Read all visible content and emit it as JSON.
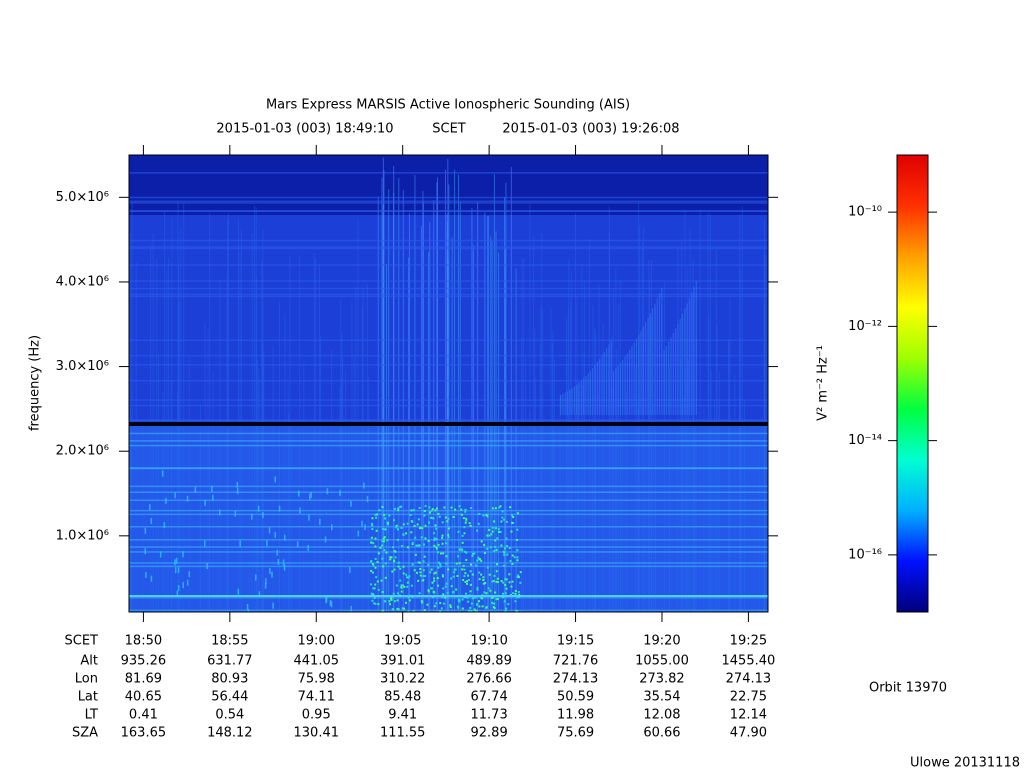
{
  "chart_data": {
    "type": "spectrogram",
    "title": "Mars Express MARSIS Active Ionospheric Sounding (AIS)",
    "time_start": "2015-01-03 (003) 18:49:10",
    "time_system": "SCET",
    "time_end": "2015-01-03 (003) 19:26:08",
    "ylabel": "frequency (Hz)",
    "ylim": [
      100000,
      5500000
    ],
    "yticks": [
      {
        "value": 1000000,
        "label": "1.0×10⁶"
      },
      {
        "value": 2000000,
        "label": "2.0×10⁶"
      },
      {
        "value": 3000000,
        "label": "3.0×10⁶"
      },
      {
        "value": 4000000,
        "label": "4.0×10⁶"
      },
      {
        "value": 5000000,
        "label": "5.0×10⁶"
      }
    ],
    "xlim": [
      "18:49:10",
      "19:26:08"
    ],
    "xticks": [
      "18:50",
      "18:55",
      "19:00",
      "19:05",
      "19:10",
      "19:15",
      "19:20",
      "19:25"
    ],
    "colorbar": {
      "label": "V² m⁻² Hz⁻¹",
      "log": true,
      "lim": [
        1e-17,
        1e-09
      ],
      "ticks": [
        {
          "value": 1e-10,
          "label": "10⁻¹⁰"
        },
        {
          "value": 1e-12,
          "label": "10⁻¹²"
        },
        {
          "value": 1e-14,
          "label": "10⁻¹⁴"
        },
        {
          "value": 1e-16,
          "label": "10⁻¹⁶"
        }
      ],
      "colors": [
        "#00007a",
        "#0010ff",
        "#00b0ff",
        "#00ffd0",
        "#00ff40",
        "#a0ff00",
        "#ffff00",
        "#ffa000",
        "#ff3000",
        "#e00000"
      ]
    }
  },
  "ephemeris": {
    "header": "SCET",
    "rows": [
      {
        "name": "Alt",
        "values": [
          "935.26",
          "631.77",
          "441.05",
          "391.01",
          "489.89",
          "721.76",
          "1055.00",
          "1455.40"
        ]
      },
      {
        "name": "Lon",
        "values": [
          "81.69",
          "80.93",
          "75.98",
          "310.22",
          "276.66",
          "274.13",
          "273.82",
          "274.13"
        ]
      },
      {
        "name": "Lat",
        "values": [
          "40.65",
          "56.44",
          "74.11",
          "85.48",
          "67.74",
          "50.59",
          "35.54",
          "22.75"
        ]
      },
      {
        "name": "LT",
        "values": [
          "0.41",
          "0.54",
          "0.95",
          "9.41",
          "11.73",
          "11.98",
          "12.08",
          "12.14"
        ]
      },
      {
        "name": "SZA",
        "values": [
          "163.65",
          "148.12",
          "130.41",
          "111.55",
          "92.89",
          "75.69",
          "60.66",
          "47.90"
        ]
      }
    ]
  },
  "orbit": "Orbit 13970",
  "credit": "Ulowe 20131118"
}
